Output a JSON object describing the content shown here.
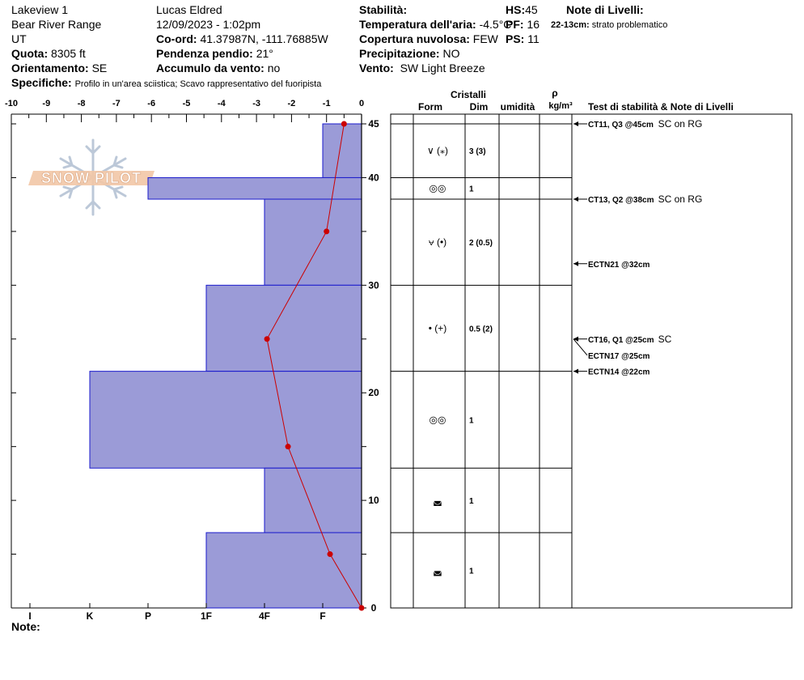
{
  "header": {
    "site": "Lakeview 1",
    "range": "Bear River Range",
    "state": "UT",
    "elevation_label": "Quota:",
    "elevation": "8305 ft",
    "aspect_label": "Orientamento:",
    "aspect": "SE",
    "specifics_label": "Specifiche:",
    "specifics": "Profilo in un'area sciistica; Scavo rappresentativo del fuoripista",
    "observer": "Lucas Eldred",
    "datetime": "12/09/2023 - 1:02pm",
    "coord_label": "Co-ord:",
    "coord": "41.37987N, -111.76885W",
    "slope_label": "Pendenza pendio:",
    "slope": "21°",
    "wind_load_label": "Accumulo da vento:",
    "wind_load": "no",
    "stability_label": "Stabilità:",
    "stability": "",
    "air_temp_label": "Temperatura dell'aria:",
    "air_temp": "-4.5°C",
    "sky_label": "Copertura nuvolosa:",
    "sky": "FEW",
    "precip_label": "Precipitazione:",
    "precip": "NO",
    "wind_label": "Vento:",
    "wind": "SW Light Breeze",
    "hs_label": "HS:",
    "hs": "45",
    "pf_label": "PF:",
    "pf": "16",
    "ps_label": "PS:",
    "ps": "11",
    "layer_notes_label": "Note di Livelli:",
    "layer_note_depth": "22-13cm:",
    "layer_note_text": "strato problematico",
    "notes_label": "Note:"
  },
  "chart_data": {
    "type": "bar",
    "description_axis_top": "temperature (°C)",
    "temp_ticks": [
      "-10",
      "-9",
      "-8",
      "-7",
      "-6",
      "-5",
      "-4",
      "-3",
      "-2",
      "-1",
      "0"
    ],
    "hardness_ticks": [
      "I",
      "K",
      "P",
      "1F",
      "4F",
      "F"
    ],
    "depth_ticks": [
      "0",
      "10",
      "20",
      "30",
      "40",
      "45"
    ],
    "hardness_layers": [
      {
        "top": 45,
        "bottom": 40,
        "hardness": "F"
      },
      {
        "top": 40,
        "bottom": 38,
        "hardness": "P"
      },
      {
        "top": 38,
        "bottom": 30,
        "hardness": "4F"
      },
      {
        "top": 30,
        "bottom": 22,
        "hardness": "1F"
      },
      {
        "top": 22,
        "bottom": 13,
        "hardness": "K+"
      },
      {
        "top": 13,
        "bottom": 7,
        "hardness": "4F"
      },
      {
        "top": 7,
        "bottom": 0,
        "hardness": "1F"
      }
    ],
    "temperature_profile": [
      {
        "depth": 45,
        "temp": -0.5
      },
      {
        "depth": 35,
        "temp": -1.0
      },
      {
        "depth": 25,
        "temp": -2.7
      },
      {
        "depth": 15,
        "temp": -2.1
      },
      {
        "depth": 5,
        "temp": -0.9
      },
      {
        "depth": 0,
        "temp": 0
      }
    ],
    "colors": {
      "bar_fill": "#9b9bd7",
      "bar_stroke": "#1a1acc",
      "temp_line": "#cc0000"
    }
  },
  "table": {
    "crystals_label": "Cristalli",
    "form_label": "Form",
    "size_label": "Dim",
    "moisture_label": "umidità",
    "rho_label": "ρ",
    "density_unit": "kg/m³",
    "tests_label": "Test di stabilità & Note di Livelli",
    "layers": [
      {
        "top": 45,
        "bottom": 40,
        "form": "∨ (⁎)",
        "size": "3 (3)"
      },
      {
        "top": 40,
        "bottom": 38,
        "form": "◎◎",
        "size": "1"
      },
      {
        "top": 38,
        "bottom": 30,
        "form": "⩝ (•)",
        "size": "2 (0.5)"
      },
      {
        "top": 30,
        "bottom": 22,
        "form": "• (+)",
        "size": "0.5 (2)"
      },
      {
        "top": 22,
        "bottom": 13,
        "form": "◎◎",
        "size": "1"
      },
      {
        "top": 13,
        "bottom": 7,
        "form": "◛",
        "size": "1"
      },
      {
        "top": 7,
        "bottom": 0,
        "form": "◛",
        "size": "1"
      }
    ],
    "tests": [
      {
        "depth": 45,
        "label": "CT11, Q3 @45cm",
        "extra": "SC on RG"
      },
      {
        "depth": 38,
        "label": "CT13, Q2 @38cm",
        "extra": "SC on RG"
      },
      {
        "depth": 32,
        "label": "ECTN21 @32cm",
        "extra": ""
      },
      {
        "depth": 25,
        "label": "CT16, Q1 @25cm",
        "extra": "SC"
      },
      {
        "depth": 25,
        "label": "ECTN17 @25cm",
        "extra": ""
      },
      {
        "depth": 22,
        "label": "ECTN14 @22cm",
        "extra": ""
      }
    ]
  },
  "logo": {
    "text": "SNOW PILOT"
  }
}
